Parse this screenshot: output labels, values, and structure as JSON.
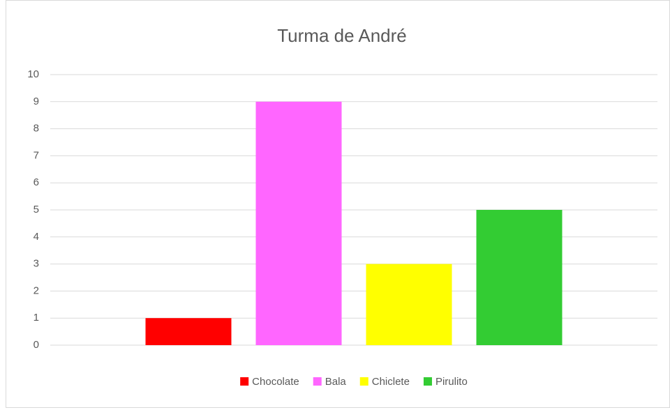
{
  "chart_data": {
    "type": "bar",
    "title": "Turma de André",
    "categories": [
      null
    ],
    "series": [
      {
        "name": "Chocolate",
        "color": "#ff0000",
        "values": [
          1
        ]
      },
      {
        "name": "Bala",
        "color": "#ff66ff",
        "values": [
          9
        ]
      },
      {
        "name": "Chiclete",
        "color": "#ffff00",
        "values": [
          3
        ]
      },
      {
        "name": "Pirulito",
        "color": "#33cc33",
        "values": [
          5
        ]
      }
    ],
    "ylim": [
      0,
      10
    ],
    "yticks": [
      0,
      1,
      2,
      3,
      4,
      5,
      6,
      7,
      8,
      9,
      10
    ],
    "grid": true,
    "legend": "bottom"
  }
}
